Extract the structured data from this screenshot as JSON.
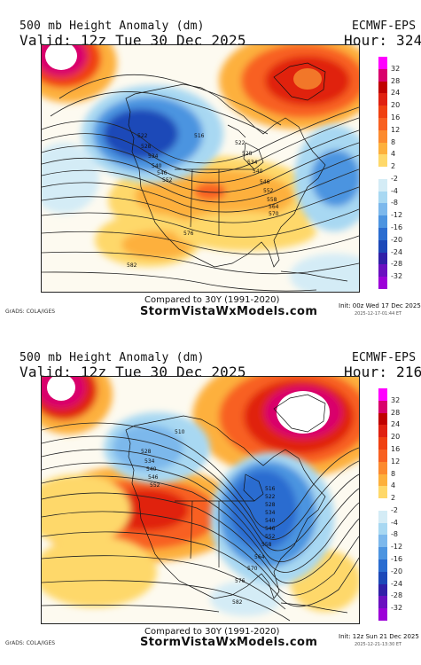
{
  "panels": [
    {
      "title": "500 mb Height Anomaly (dm)",
      "model": "ECMWF-EPS",
      "valid": "Valid: 12z Tue 30 Dec 2025",
      "hour": "Hour: 324",
      "compared": "Compared to 30Y (1991-2020)",
      "site": "StormVistaWxModels.com",
      "credit": "GrADS: COLA/IGES",
      "init": "Init: 00z Wed 17 Dec 2025",
      "stamp": "2025-12-17-01:44 ET",
      "contour_labels": [
        "522",
        "528",
        "534",
        "540",
        "546",
        "552",
        "516",
        "522",
        "528",
        "534",
        "540",
        "546",
        "552",
        "558",
        "564",
        "570",
        "576",
        "582"
      ]
    },
    {
      "title": "500 mb Height Anomaly (dm)",
      "model": "ECMWF-EPS",
      "valid": "Valid: 12z Tue 30 Dec 2025",
      "hour": "Hour: 216",
      "compared": "Compared to 30Y (1991-2020)",
      "site": "StormVistaWxModels.com",
      "credit": "GrADS: COLA/IGES",
      "init": "Init: 12z Sun 21 Dec 2025",
      "stamp": "2025-12-21-13:30 ET",
      "contour_labels": [
        "510",
        "528",
        "534",
        "540",
        "546",
        "552",
        "516",
        "522",
        "528",
        "534",
        "540",
        "546",
        "552",
        "558",
        "564",
        "570",
        "576",
        "582"
      ]
    }
  ],
  "colorbar": {
    "ticks": [
      "32",
      "28",
      "24",
      "20",
      "16",
      "12",
      "8",
      "4",
      "2",
      "-2",
      "-4",
      "-8",
      "-12",
      "-16",
      "-20",
      "-24",
      "-28",
      "-32"
    ],
    "colors": [
      "#ff00ff",
      "#d9006c",
      "#c00000",
      "#e02010",
      "#f04010",
      "#f86020",
      "#fc8a2e",
      "#fdb03c",
      "#fed86a",
      "#ffffff",
      "#d4ecf6",
      "#a8d8f2",
      "#7cb8ec",
      "#4c94e0",
      "#2a6cd0",
      "#1c48b8",
      "#3020a8",
      "#6a10c0",
      "#9c00d8"
    ]
  },
  "chart_data": [
    {
      "type": "heatmap",
      "title": "500 mb Height Anomaly (dm)",
      "valid": "12z Tue 30 Dec 2025",
      "forecast_hour": 324,
      "regions": [
        {
          "area": "Alaska / Gulf of Alaska",
          "anomaly": 32
        },
        {
          "area": "Greenland",
          "anomaly": 24
        },
        {
          "area": "Western Canada / Pacific Northwest",
          "anomaly": -20
        },
        {
          "area": "Central U.S.",
          "anomaly": 8
        },
        {
          "area": "Western Atlantic",
          "anomaly": -8
        },
        {
          "area": "Southwest U.S.",
          "anomaly": 4
        }
      ],
      "legend_min": -32,
      "legend_max": 32
    },
    {
      "type": "heatmap",
      "title": "500 mb Height Anomaly (dm)",
      "valid": "12z Tue 30 Dec 2025",
      "forecast_hour": 216,
      "regions": [
        {
          "area": "Alaska",
          "anomaly": 32
        },
        {
          "area": "Greenland",
          "anomaly": 32
        },
        {
          "area": "Western Canada",
          "anomaly": -12
        },
        {
          "area": "Southwest U.S.",
          "anomaly": 16
        },
        {
          "area": "Eastern U.S. / Great Lakes",
          "anomaly": -16
        },
        {
          "area": "Eastern Pacific",
          "anomaly": 8
        }
      ],
      "legend_min": -32,
      "legend_max": 32
    }
  ]
}
